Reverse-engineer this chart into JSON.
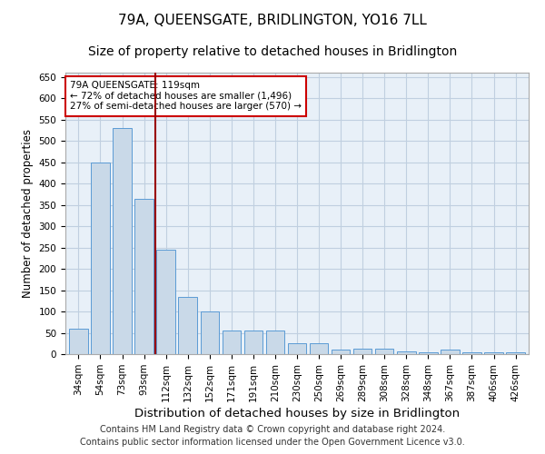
{
  "title": "79A, QUEENSGATE, BRIDLINGTON, YO16 7LL",
  "subtitle": "Size of property relative to detached houses in Bridlington",
  "xlabel": "Distribution of detached houses by size in Bridlington",
  "ylabel": "Number of detached properties",
  "categories": [
    "34sqm",
    "54sqm",
    "73sqm",
    "93sqm",
    "112sqm",
    "132sqm",
    "152sqm",
    "171sqm",
    "191sqm",
    "210sqm",
    "230sqm",
    "250sqm",
    "269sqm",
    "289sqm",
    "308sqm",
    "328sqm",
    "348sqm",
    "367sqm",
    "387sqm",
    "406sqm",
    "426sqm"
  ],
  "values": [
    60,
    450,
    530,
    365,
    245,
    135,
    100,
    55,
    55,
    55,
    25,
    25,
    10,
    12,
    12,
    6,
    5,
    10,
    4,
    4,
    4
  ],
  "bar_color": "#c9d9e8",
  "bar_edge_color": "#5b9bd5",
  "annotation_text": "79A QUEENSGATE: 119sqm\n← 72% of detached houses are smaller (1,496)\n27% of semi-detached houses are larger (570) →",
  "annotation_box_color": "#ffffff",
  "annotation_box_edge_color": "#cc0000",
  "vline_color": "#990000",
  "ylim": [
    0,
    660
  ],
  "yticks": [
    0,
    50,
    100,
    150,
    200,
    250,
    300,
    350,
    400,
    450,
    500,
    550,
    600,
    650
  ],
  "grid_color": "#c0cfe0",
  "background_color": "#e8f0f8",
  "footer_line1": "Contains HM Land Registry data © Crown copyright and database right 2024.",
  "footer_line2": "Contains public sector information licensed under the Open Government Licence v3.0.",
  "title_fontsize": 11,
  "subtitle_fontsize": 10,
  "xlabel_fontsize": 9.5,
  "ylabel_fontsize": 8.5,
  "tick_fontsize": 7.5,
  "annotation_fontsize": 7.5,
  "footer_fontsize": 7
}
